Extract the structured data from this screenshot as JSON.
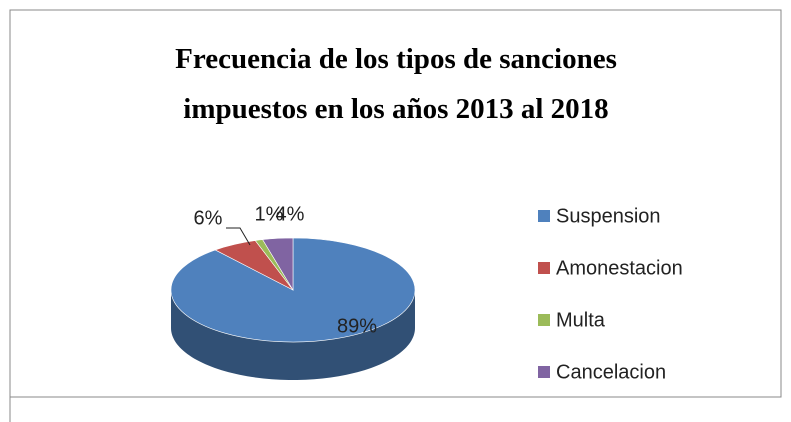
{
  "chart_data": {
    "type": "pie3d",
    "title": [
      "Frecuencia de los tipos de sanciones",
      "impuestos en los años 2013 al 2018"
    ],
    "categories": [
      "Suspension",
      "Amonestacion",
      "Multa",
      "Cancelacion"
    ],
    "values": [
      89,
      6,
      1,
      4
    ],
    "value_labels": [
      "89%",
      "6%",
      "1%",
      "4%"
    ],
    "colors": [
      "#4f81bd",
      "#c0504d",
      "#9bbb59",
      "#8064a2"
    ],
    "legend": "right"
  }
}
